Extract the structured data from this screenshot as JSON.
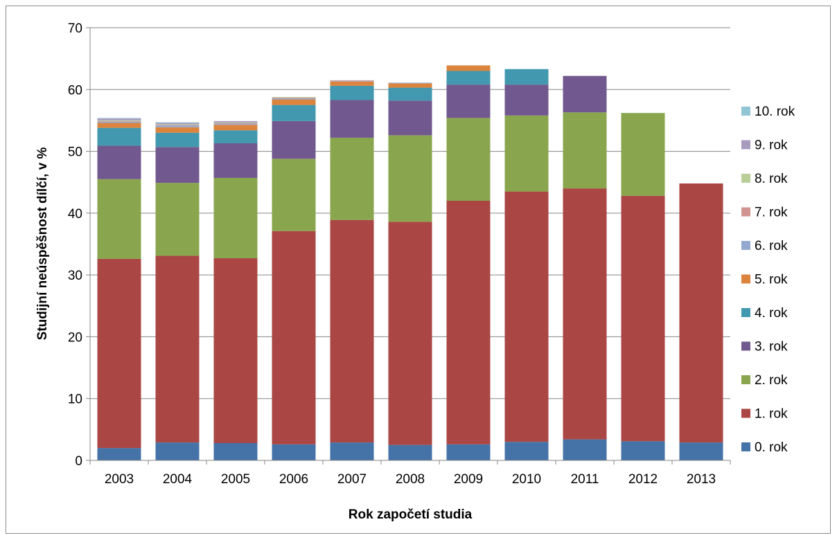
{
  "chart_data": {
    "type": "bar",
    "stacked": true,
    "title": "",
    "xlabel": "Rok započetí studia",
    "ylabel": "Studijní neúspěšnost dílčí, v %",
    "ylim": [
      0,
      70
    ],
    "yticks": [
      0,
      10,
      20,
      30,
      40,
      50,
      60,
      70
    ],
    "grid": true,
    "legend_position": "right",
    "categories": [
      "2003",
      "2004",
      "2005",
      "2006",
      "2007",
      "2008",
      "2009",
      "2010",
      "2011",
      "2012",
      "2013"
    ],
    "series": [
      {
        "name": "0. rok",
        "color": "#4573a7",
        "values": [
          2.0,
          2.9,
          2.8,
          2.6,
          2.9,
          2.5,
          2.6,
          3.0,
          3.4,
          3.1,
          2.9
        ]
      },
      {
        "name": "1. rok",
        "color": "#aa4643",
        "values": [
          30.6,
          30.2,
          29.9,
          34.5,
          36.0,
          36.1,
          39.4,
          40.5,
          40.6,
          39.7,
          41.9
        ]
      },
      {
        "name": "2. rok",
        "color": "#89a54e",
        "values": [
          12.9,
          11.8,
          13.0,
          11.7,
          13.3,
          14.0,
          13.4,
          12.3,
          12.3,
          13.4,
          0
        ]
      },
      {
        "name": "3. rok",
        "color": "#71588f",
        "values": [
          5.4,
          5.8,
          5.6,
          6.1,
          6.1,
          5.6,
          5.4,
          5.0,
          5.9,
          0,
          0
        ]
      },
      {
        "name": "4. rok",
        "color": "#4298af",
        "values": [
          2.9,
          2.3,
          2.1,
          2.6,
          2.3,
          2.1,
          2.2,
          2.5,
          0,
          0,
          0
        ]
      },
      {
        "name": "5. rok",
        "color": "#db843d",
        "values": [
          0.8,
          0.9,
          0.9,
          0.9,
          0.7,
          0.7,
          0.9,
          0,
          0,
          0,
          0
        ]
      },
      {
        "name": "6. rok",
        "color": "#93a9cf",
        "values": [
          0.2,
          0.3,
          0.2,
          0.2,
          0.1,
          0.1,
          0,
          0,
          0,
          0,
          0
        ]
      },
      {
        "name": "7. rok",
        "color": "#d19392",
        "values": [
          0.1,
          0.1,
          0.1,
          0.1,
          0.1,
          0,
          0,
          0,
          0,
          0,
          0
        ]
      },
      {
        "name": "8. rok",
        "color": "#b9cd96",
        "values": [
          0.1,
          0.1,
          0.1,
          0.1,
          0,
          0,
          0,
          0,
          0,
          0,
          0
        ]
      },
      {
        "name": "9. rok",
        "color": "#a99bbd",
        "values": [
          0.3,
          0.2,
          0.2,
          0,
          0,
          0,
          0,
          0,
          0,
          0,
          0
        ]
      },
      {
        "name": "10. rok",
        "color": "#92c5d4",
        "values": [
          0.1,
          0.1,
          0,
          0,
          0,
          0,
          0,
          0,
          0,
          0,
          0
        ]
      }
    ]
  }
}
